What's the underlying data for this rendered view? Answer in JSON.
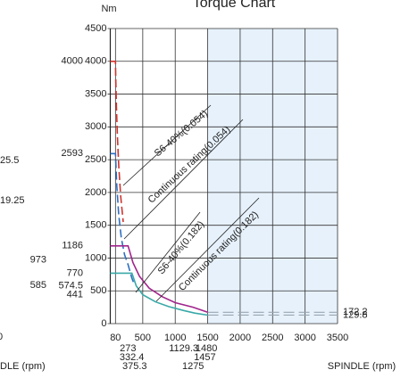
{
  "chart_data": {
    "type": "line",
    "title": "Torque Chart",
    "y_label": "Nm",
    "x_label": "SPINDLE (rpm)",
    "xlim": [
      0,
      3500
    ],
    "ylim": [
      0,
      4500
    ],
    "xticks": [
      80,
      500,
      1000,
      1500,
      2000,
      2500,
      3000,
      3500
    ],
    "yticks": [
      0,
      500,
      1000,
      1500,
      2000,
      2500,
      3000,
      3500,
      4000,
      4500
    ],
    "grid": true,
    "shade_from": 1500,
    "shade_color": "#e6f1fb",
    "series": [
      {
        "name": "S6-40%(0.054)",
        "color": "#d0342c",
        "dash": true,
        "x": [
          0,
          80,
          85,
          95,
          110,
          130,
          160,
          200
        ],
        "values": [
          4000,
          4000,
          3700,
          3300,
          2850,
          2400,
          1950,
          1550
        ]
      },
      {
        "name": "Continuous rating(0.054)",
        "color": "#2f6fc0",
        "dash": true,
        "x": [
          0,
          80,
          100,
          130,
          170,
          220,
          273,
          330,
          375.3
        ],
        "values": [
          2593,
          2593,
          2100,
          1650,
          1300,
          1050,
          900,
          700,
          585
        ]
      },
      {
        "name": "S6-40%(0.182)",
        "color": "#a0248c",
        "dash": false,
        "x": [
          0,
          273,
          350,
          450,
          600,
          800,
          1000,
          1275,
          1500
        ],
        "values": [
          1186,
          1186,
          930,
          720,
          540,
          410,
          320,
          250,
          172.2
        ]
      },
      {
        "name": "Continuous rating(0.182)",
        "color": "#3aa8a8",
        "dash": false,
        "x": [
          0,
          332.4,
          400,
          500,
          700,
          900,
          1129.3,
          1300,
          1500
        ],
        "values": [
          770,
          770,
          574.5,
          441,
          330,
          260,
          200,
          160,
          129.8
        ]
      }
    ],
    "right_labels": [
      172.2,
      129.8
    ],
    "left_labels": [
      4000,
      2593,
      1186,
      770,
      574.5,
      441
    ],
    "left_labels_outer": [
      973,
      585
    ],
    "bottom_labels": [
      [
        273,
        1129.3,
        1480
      ],
      [
        332.4,
        1457
      ],
      [
        375.3,
        1275
      ]
    ],
    "left_fragment_texts": [
      "25.5",
      "19.25",
      "0",
      "DLE (rpm)"
    ]
  }
}
